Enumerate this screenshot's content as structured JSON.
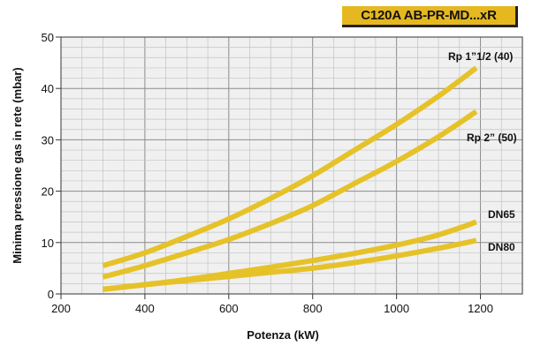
{
  "title": "C120A AB-PR-MD...xR",
  "chart_data": {
    "type": "line",
    "xlabel": "Potenza (kW)",
    "ylabel": "Minima pressione gas in rete (mbar)",
    "xlim": [
      200,
      1300
    ],
    "ylim": [
      0,
      50
    ],
    "xticks": [
      200,
      400,
      600,
      800,
      1000,
      1200
    ],
    "yticks": [
      0,
      10,
      20,
      30,
      40,
      50
    ],
    "grid": true,
    "line_color": "#e6c229",
    "series": [
      {
        "name": "Rp 1”1/2 (40)",
        "x": [
          300,
          400,
          500,
          600,
          700,
          800,
          900,
          1000,
          1100,
          1190
        ],
        "y": [
          5.5,
          8.0,
          11.2,
          14.6,
          18.6,
          23.0,
          28.0,
          33.0,
          38.5,
          44.0
        ]
      },
      {
        "name": "Rp 2” (50)",
        "x": [
          300,
          400,
          500,
          600,
          700,
          800,
          900,
          1000,
          1100,
          1190
        ],
        "y": [
          3.3,
          5.5,
          8.0,
          10.6,
          13.7,
          17.2,
          21.5,
          25.8,
          30.6,
          35.5
        ]
      },
      {
        "name": "DN65",
        "x": [
          300,
          400,
          500,
          600,
          700,
          800,
          900,
          1000,
          1100,
          1190
        ],
        "y": [
          0.9,
          1.8,
          2.8,
          4.0,
          5.2,
          6.5,
          7.9,
          9.5,
          11.5,
          14.0
        ]
      },
      {
        "name": "DN80",
        "x": [
          300,
          400,
          500,
          600,
          700,
          800,
          900,
          1000,
          1100,
          1190
        ],
        "y": [
          0.9,
          1.8,
          2.6,
          3.4,
          4.2,
          5.0,
          6.1,
          7.4,
          8.9,
          10.4
        ]
      }
    ]
  }
}
